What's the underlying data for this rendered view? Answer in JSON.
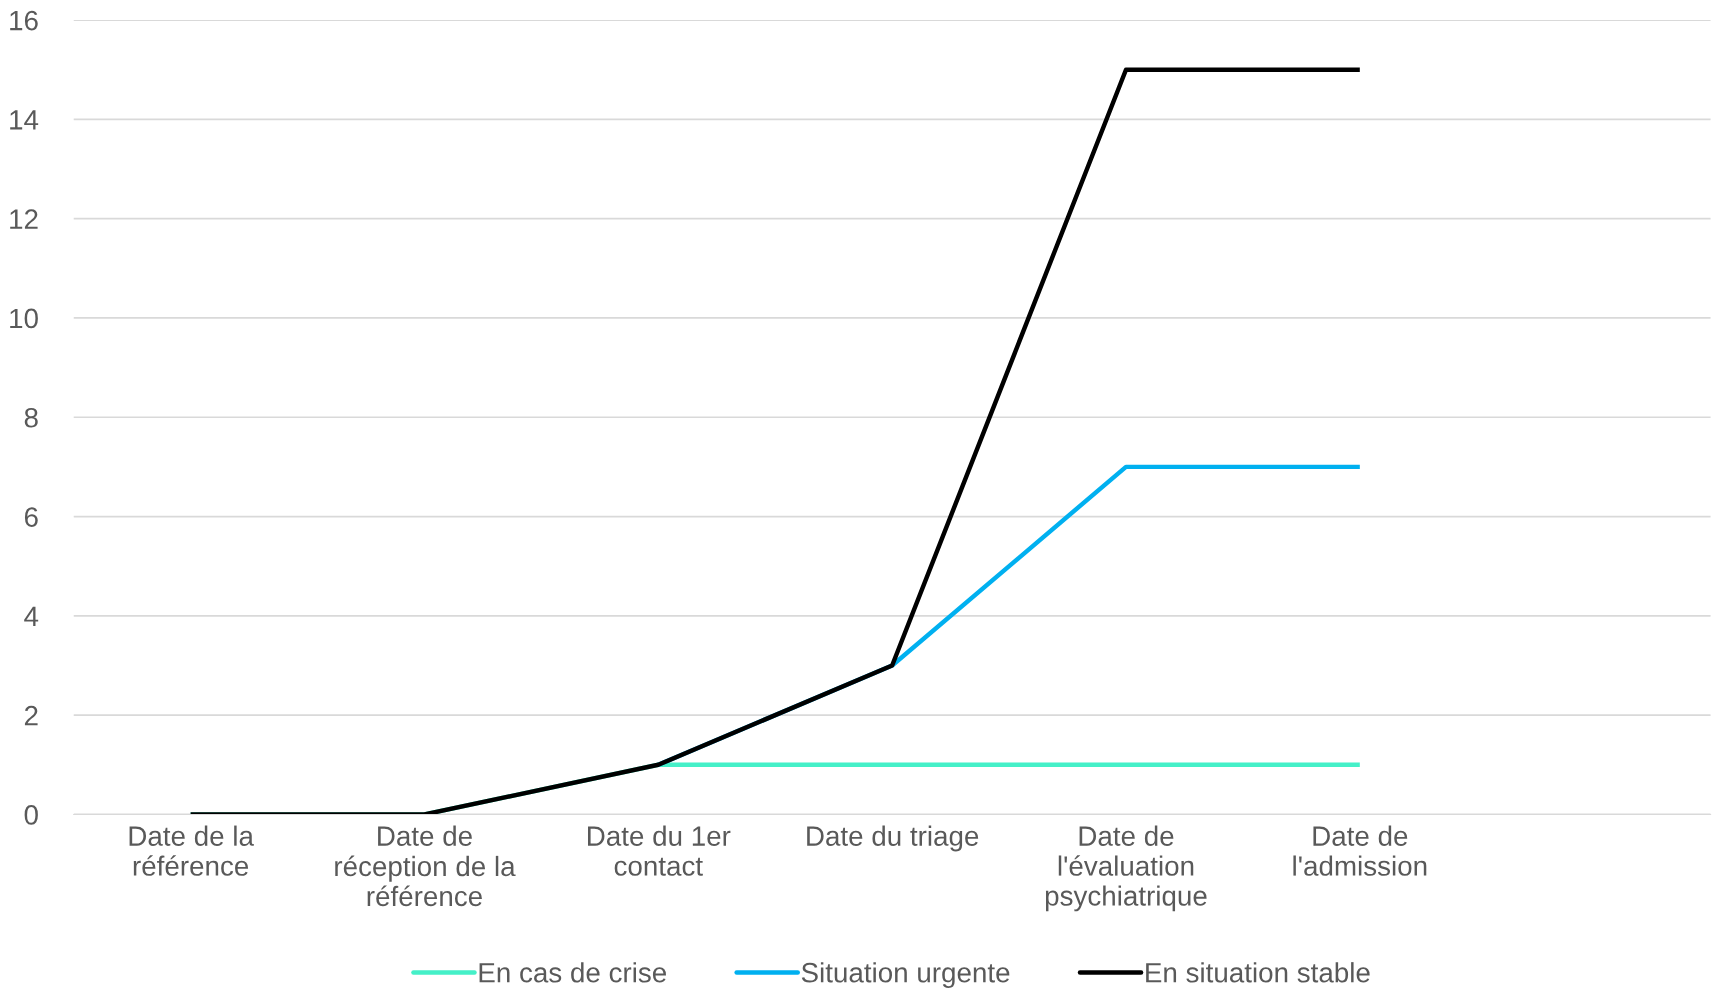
{
  "chart_data": {
    "type": "line",
    "categories": [
      "Date de la\nréférence",
      "Date de\nréception de la\nréférence",
      "Date du 1er\ncontact",
      "Date du triage",
      "Date de\nl'évaluation\npsychiatrique",
      "Date de\nl'admission",
      null
    ],
    "series": [
      {
        "name": "En cas de crise",
        "color": "#45f0c8",
        "values": [
          0,
          0,
          1,
          1,
          1,
          1,
          null
        ]
      },
      {
        "name": "Situation urgente",
        "color": "#00b0f0",
        "values": [
          null,
          null,
          1,
          3,
          7,
          7,
          null
        ]
      },
      {
        "name": "En situation stable",
        "color": "#000000",
        "values": [
          0,
          0,
          1,
          3,
          15,
          15,
          null
        ]
      }
    ],
    "ylim": [
      0,
      16
    ],
    "yticks": [
      0,
      2,
      4,
      6,
      8,
      10,
      12,
      14,
      16
    ],
    "grid": "y",
    "legend": "bottom",
    "marker": "none",
    "line_style": "solid"
  }
}
